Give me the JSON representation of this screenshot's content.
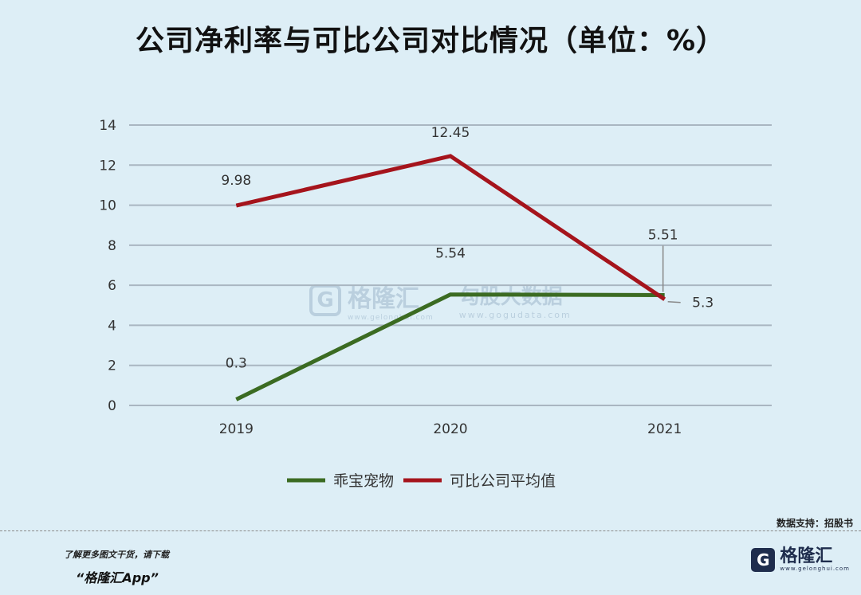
{
  "title": "公司净利率与可比公司对比情况（单位：%）",
  "source": "数据支持：招股书",
  "footer": {
    "promo": "了解更多图文干货，请下载",
    "app": "“格隆汇App”",
    "logo_name": "格隆汇",
    "logo_glyph": "G",
    "logo_domain": "www.gelonghui.com"
  },
  "watermark": {
    "glyph": "G",
    "name": "格隆汇",
    "domain": "www.gelonghui.com",
    "partner": "勾股大数据",
    "partner_domain": "www.gogudata.com"
  },
  "chart_data": {
    "type": "line",
    "categories": [
      "2019",
      "2020",
      "2021"
    ],
    "ylim": [
      0,
      14
    ],
    "yticks": [
      0,
      2,
      4,
      6,
      8,
      10,
      12,
      14
    ],
    "grid": true,
    "legend_position": "bottom",
    "xlabel": "",
    "ylabel": "",
    "series": [
      {
        "name": "乖宝宠物",
        "color": "#3b6b22",
        "values": [
          0.3,
          5.54,
          5.51
        ],
        "labels": [
          "0.3",
          "5.54",
          "5.51"
        ]
      },
      {
        "name": "可比公司平均值",
        "color": "#a5141c",
        "values": [
          9.98,
          12.45,
          5.3
        ],
        "labels": [
          "9.98",
          "12.45",
          "5.3"
        ]
      }
    ]
  }
}
